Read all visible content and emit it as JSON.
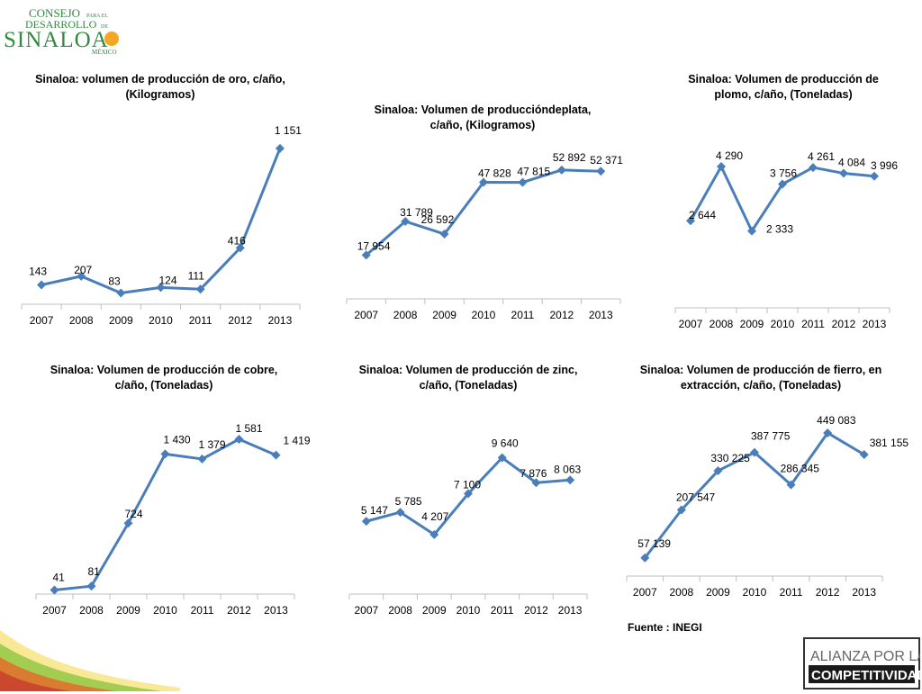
{
  "logo": {
    "line1": "CONSEJO",
    "line1_small": "PARA EL",
    "line2": "DESARROLLO",
    "line2_small": "DE",
    "line3": "SINALOA",
    "line4": "MÉXICO",
    "color_green": "#2e8b3d",
    "color_orange": "#f5a623"
  },
  "source": "Fuente : INEGI",
  "partner_logo": {
    "line1": "ALIANZA POR LA",
    "line2": "COMPETITIVIDAD"
  },
  "colors": {
    "line": "#4a7ebb",
    "axis": "#bfbfbf"
  },
  "chart_data": [
    {
      "type": "line",
      "title_lines": [
        "Sinaloa: volumen de producción de oro, c/año,",
        "(Kilogramos)"
      ],
      "categories": [
        "2007",
        "2008",
        "2009",
        "2010",
        "2011",
        "2012",
        "2013"
      ],
      "values": [
        143,
        207,
        83,
        124,
        111,
        416,
        1151
      ],
      "labels": [
        "143",
        "207",
        "83",
        "124",
        "111",
        "416",
        "1 151"
      ],
      "ylim": [
        0,
        1250
      ]
    },
    {
      "type": "line",
      "title_lines": [
        "Sinaloa: Volumen de produccióndeplata,",
        "c/año, (Kilogramos)"
      ],
      "categories": [
        "2007",
        "2008",
        "2009",
        "2010",
        "2011",
        "2012",
        "2013"
      ],
      "values": [
        17954,
        31789,
        26592,
        47828,
        47815,
        52892,
        52371
      ],
      "labels": [
        "17 954",
        "31 789",
        "26 592",
        "47 828",
        "47 815",
        "52 892",
        "52 371"
      ],
      "ylim": [
        0,
        58000
      ]
    },
    {
      "type": "line",
      "title_lines": [
        "Sinaloa: Volumen de producción de",
        "plomo, c/año, (Toneladas)"
      ],
      "categories": [
        "2007",
        "2008",
        "2009",
        "2010",
        "2011",
        "2012",
        "2013"
      ],
      "values": [
        2644,
        4290,
        2333,
        3756,
        4261,
        4084,
        3996
      ],
      "labels": [
        "2 644",
        "4 290",
        "2 333",
        "3 756",
        "4 261",
        "4 084",
        "3 996"
      ],
      "ylim": [
        0,
        4700
      ]
    },
    {
      "type": "line",
      "title_lines": [
        "Sinaloa: Volumen de producción de cobre,",
        "c/año, (Toneladas)"
      ],
      "categories": [
        "2007",
        "2008",
        "2009",
        "2010",
        "2011",
        "2012",
        "2013"
      ],
      "values": [
        41,
        81,
        724,
        1430,
        1379,
        1581,
        1419
      ],
      "labels": [
        "41",
        "81",
        "724",
        "1 430",
        "1 379",
        "1 581",
        "1 419"
      ],
      "ylim": [
        0,
        1700
      ]
    },
    {
      "type": "line",
      "title_lines": [
        "Sinaloa: Volumen de producción de zinc,",
        "c/año, (Toneladas)"
      ],
      "categories": [
        "2007",
        "2008",
        "2009",
        "2010",
        "2011",
        "2012",
        "2013"
      ],
      "values": [
        5147,
        5785,
        4207,
        7100,
        9640,
        7876,
        8063
      ],
      "labels": [
        "5 147",
        "5 785",
        "4 207",
        "7 100",
        "9 640",
        "7 876",
        "8 063"
      ],
      "ylim": [
        0,
        10500
      ]
    },
    {
      "type": "line",
      "title_lines": [
        "Sinaloa: Volumen de producción de fierro, en",
        "extracción, c/año, (Toneladas)"
      ],
      "categories": [
        "2007",
        "2008",
        "2009",
        "2010",
        "2011",
        "2012",
        "2013"
      ],
      "values": [
        57139,
        207547,
        330225,
        387775,
        286345,
        449083,
        381155
      ],
      "labels": [
        "57 139",
        "207 547",
        "330 225",
        "387 775",
        "286 345",
        "449 083",
        "381 155"
      ],
      "ylim": [
        0,
        480000
      ]
    }
  ]
}
